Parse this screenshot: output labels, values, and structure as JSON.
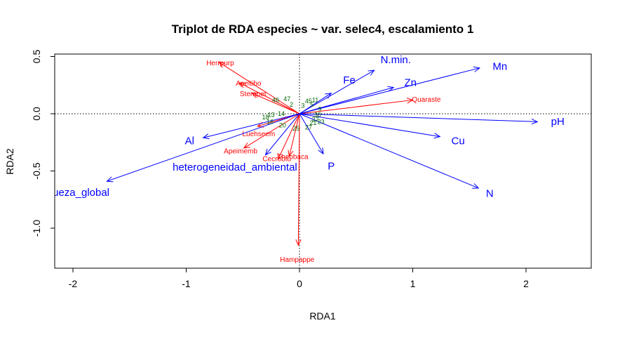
{
  "chart_data": {
    "type": "scatter",
    "subtype": "rda-triplot",
    "title": "Triplot de RDA especies ~ var. selec4, escalamiento 1",
    "xlabel": "RDA1",
    "ylabel": "RDA2",
    "xlim": [
      -2.0,
      2.6
    ],
    "ylim": [
      -1.35,
      0.53
    ],
    "x_ticks": [
      -2,
      -1,
      0,
      1,
      2
    ],
    "y_ticks": [
      -1.0,
      -0.5,
      0.0,
      0.5
    ],
    "x_tick_labels": [
      "-2",
      "-1",
      "0",
      "1",
      "2"
    ],
    "y_tick_labels": [
      "-1.0",
      "-0.5",
      "0.0",
      "0.5"
    ],
    "reference_lines": "dotted lines at x=0 and y=0",
    "colors": {
      "environment": "#0000ff",
      "species": "#ff0000",
      "sites": "#006400"
    },
    "environmental_vectors": [
      {
        "label": "N.min.",
        "x": 0.66,
        "y": 0.38,
        "lx": 0.85,
        "ly": 0.47
      },
      {
        "label": "Mn",
        "x": 1.59,
        "y": 0.4,
        "lx": 1.77,
        "ly": 0.41
      },
      {
        "label": "Fe",
        "x": 0.28,
        "y": 0.18,
        "lx": 0.44,
        "ly": 0.29
      },
      {
        "label": "Zn",
        "x": 0.83,
        "y": 0.23,
        "lx": 0.98,
        "ly": 0.27
      },
      {
        "label": "pH",
        "x": 2.1,
        "y": -0.07,
        "lx": 2.28,
        "ly": -0.07
      },
      {
        "label": "Cu",
        "x": 1.24,
        "y": -0.2,
        "lx": 1.4,
        "ly": -0.24
      },
      {
        "label": "N",
        "x": 1.58,
        "y": -0.65,
        "lx": 1.68,
        "ly": -0.7
      },
      {
        "label": "P",
        "x": 0.21,
        "y": -0.35,
        "lx": 0.28,
        "ly": -0.46
      },
      {
        "label": "Al",
        "x": -0.85,
        "y": -0.21,
        "lx": -0.97,
        "ly": -0.24
      },
      {
        "label": "heterogeneidad_ambiental",
        "x": -0.3,
        "y": -0.36,
        "lx": -0.57,
        "ly": -0.47
      },
      {
        "label": "riqueza_global",
        "x": -1.7,
        "y": -0.59,
        "lx": -1.98,
        "ly": -0.69
      }
    ],
    "species_vectors": [
      {
        "label": "Herrpurp",
        "x": -0.71,
        "y": 0.45,
        "lx": -0.7,
        "ly": 0.44
      },
      {
        "label": "Apeltibo",
        "x": -0.53,
        "y": 0.27,
        "lx": -0.45,
        "ly": 0.26
      },
      {
        "label": "Sterapet",
        "x": -0.42,
        "y": 0.18,
        "lx": -0.41,
        "ly": 0.17
      },
      {
        "label": "Quaraste",
        "x": 1.0,
        "y": 0.12,
        "lx": 1.12,
        "ly": 0.12
      },
      {
        "label": "Luehseem",
        "x": -0.37,
        "y": -0.11,
        "lx": -0.36,
        "ly": -0.18
      },
      {
        "label": "Apeimemb",
        "x": -0.49,
        "y": -0.3,
        "lx": -0.52,
        "ly": -0.33
      },
      {
        "label": "Theobaca",
        "x": -0.09,
        "y": -0.37,
        "lx": -0.06,
        "ly": -0.38
      },
      {
        "label": "Cecrobtu",
        "x": -0.19,
        "y": -0.4,
        "lx": -0.2,
        "ly": -0.4
      },
      {
        "label": "Hampappe",
        "x": -0.01,
        "y": -1.15,
        "lx": -0.02,
        "ly": -1.28
      }
    ],
    "site_labels": [
      {
        "label": "47",
        "x": -0.11,
        "y": 0.13
      },
      {
        "label": "46",
        "x": -0.21,
        "y": 0.12
      },
      {
        "label": "45",
        "x": 0.08,
        "y": 0.11
      },
      {
        "label": "11",
        "x": 0.14,
        "y": 0.12
      },
      {
        "label": "2",
        "x": -0.07,
        "y": 0.08
      },
      {
        "label": "3",
        "x": 0.03,
        "y": 0.07
      },
      {
        "label": "5",
        "x": 0.11,
        "y": 0.08
      },
      {
        "label": "9",
        "x": 0.18,
        "y": 0.04
      },
      {
        "label": "13",
        "x": -0.25,
        "y": -0.01
      },
      {
        "label": "14",
        "x": -0.16,
        "y": 0.0
      },
      {
        "label": "18",
        "x": -0.3,
        "y": -0.03
      },
      {
        "label": "16",
        "x": -0.26,
        "y": -0.07
      },
      {
        "label": "20",
        "x": -0.15,
        "y": -0.1
      },
      {
        "label": "21",
        "x": 0.12,
        "y": -0.08
      },
      {
        "label": "22",
        "x": 0.14,
        "y": -0.05
      },
      {
        "label": "23",
        "x": 0.19,
        "y": -0.07
      },
      {
        "label": "25",
        "x": -0.03,
        "y": -0.13
      },
      {
        "label": "27",
        "x": 0.08,
        "y": -0.12
      },
      {
        "label": "30",
        "x": 0.16,
        "y": -0.01
      }
    ]
  }
}
